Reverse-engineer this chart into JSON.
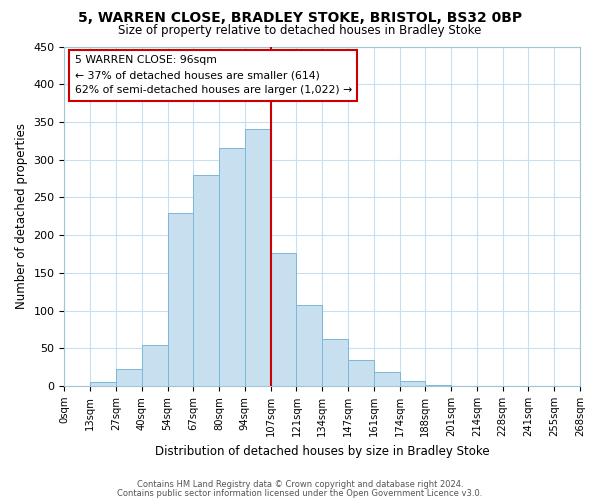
{
  "title_line1": "5, WARREN CLOSE, BRADLEY STOKE, BRISTOL, BS32 0BP",
  "title_line2": "Size of property relative to detached houses in Bradley Stoke",
  "xlabel": "Distribution of detached houses by size in Bradley Stoke",
  "ylabel": "Number of detached properties",
  "bin_labels": [
    "0sqm",
    "13sqm",
    "27sqm",
    "40sqm",
    "54sqm",
    "67sqm",
    "80sqm",
    "94sqm",
    "107sqm",
    "121sqm",
    "134sqm",
    "147sqm",
    "161sqm",
    "174sqm",
    "188sqm",
    "201sqm",
    "214sqm",
    "228sqm",
    "241sqm",
    "255sqm",
    "268sqm"
  ],
  "bar_values": [
    0,
    6,
    22,
    54,
    230,
    280,
    316,
    341,
    176,
    108,
    63,
    34,
    19,
    7,
    1,
    0,
    0,
    0,
    0,
    0
  ],
  "bar_color": "#c8dff0",
  "bar_edge_color": "#7ab8d9",
  "grid_color": "#c8dff0",
  "vline_x": 8,
  "vline_color": "#cc0000",
  "annotation_title": "5 WARREN CLOSE: 96sqm",
  "annotation_line1": "← 37% of detached houses are smaller (614)",
  "annotation_line2": "62% of semi-detached houses are larger (1,022) →",
  "annotation_box_edge": "#cc0000",
  "ylim": [
    0,
    450
  ],
  "yticks": [
    0,
    50,
    100,
    150,
    200,
    250,
    300,
    350,
    400,
    450
  ],
  "footer_line1": "Contains HM Land Registry data © Crown copyright and database right 2024.",
  "footer_line2": "Contains public sector information licensed under the Open Government Licence v3.0."
}
